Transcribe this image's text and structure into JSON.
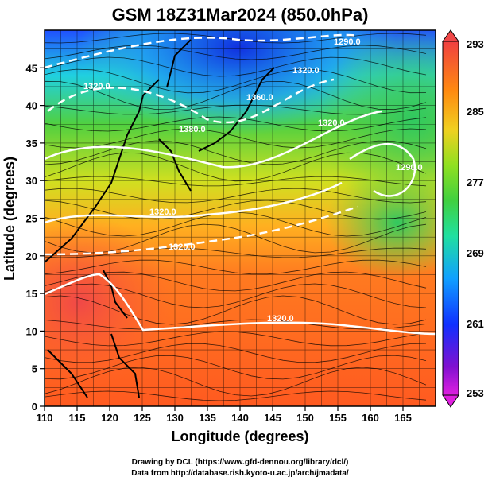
{
  "title": "GSM 18Z31Mar2024 (850.0hPa)",
  "xaxis": {
    "label": "Longitude (degrees)",
    "range": [
      110,
      170
    ],
    "ticks": [
      "110",
      "115",
      "120",
      "125",
      "130",
      "135",
      "140",
      "145",
      "150",
      "155",
      "160",
      "165"
    ]
  },
  "yaxis": {
    "label": "Latitude  (degrees)",
    "range": [
      0,
      50
    ],
    "ticks": [
      "0",
      "5",
      "10",
      "15",
      "20",
      "25",
      "30",
      "35",
      "40",
      "45"
    ]
  },
  "colorbar": {
    "ticks": [
      "293",
      "285",
      "277",
      "269",
      "261",
      "253"
    ],
    "range": [
      253,
      293
    ],
    "colors": [
      "#e020e0",
      "#4010c0",
      "#1040ff",
      "#10c0ff",
      "#20e0a0",
      "#40d040",
      "#90e020",
      "#f0d020",
      "#ff8a10",
      "#ff4020",
      "#f04040"
    ]
  },
  "contour_labels": [
    "1290.0",
    "1320.0",
    "1360.0",
    "1320.0",
    "1380.0",
    "1290.0",
    "1320.0",
    "1320.0",
    "1320.0",
    "1320.0"
  ],
  "credits": {
    "line1": "Drawing by DCL (https://www.gfd-dennou.org/library/dcl/)",
    "line2": "Data from http://database.rish.kyoto-u.ac.jp/arch/jmadata/"
  }
}
